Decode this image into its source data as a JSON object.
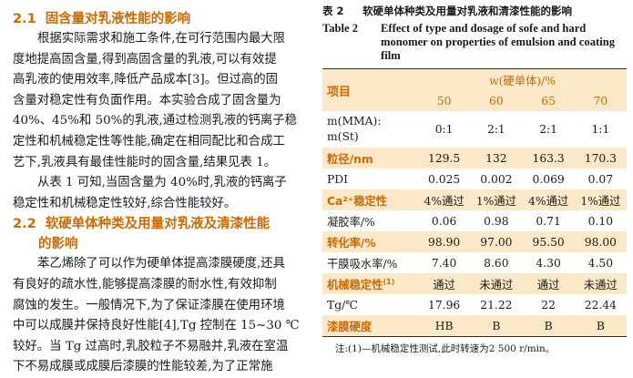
{
  "left": {
    "s21": {
      "num": "2.1",
      "title": "固含量对乳液性能的影响"
    },
    "p1": [
      "根据实际需求和施工条件,在可行范围内最大限",
      "度地提高固含量,得到高固含量的乳液,可以有效提",
      "高乳液的使用效率,降低产品成本[3]。但过高的固",
      "含量对稳定性有负面作用。本实验合成了固含量为",
      "40%、45%和 50%的乳液,通过检测乳液的钙离子稳",
      "定性和机械稳定性等性能,确定在相同配比和合成工",
      "艺下,乳液具有最佳性能时的固含量,结果见表 1。"
    ],
    "p2": [
      "从表 1 可知,当固含量为 40%时,乳液的钙离子",
      "稳定性和机械稳定性较好,综合性能较好。"
    ],
    "s22": {
      "num": "2.2",
      "title1": "软硬单体种类及用量对乳液及清漆性能",
      "title2": "的影响"
    },
    "p3": [
      "苯乙烯除了可以作为硬单体提高漆膜硬度,还具",
      "有良好的疏水性,能够提高漆膜的耐水性,有效抑制",
      "腐蚀的发生。一般情况下,为了保证漆膜在使用环境",
      "中可以成膜并保持良好性能[4],Tg 控制在 15~30 ℃",
      "较好。当 Tg 过高时,乳胶粒子不易融并,乳液在室温",
      "下不易成膜或成膜后漆膜的性能较差,为了正常施"
    ]
  },
  "table": {
    "cap_cn_label": "表 2",
    "cap_cn_text": "软硬单体种类及用量对乳液和清漆性能的影响",
    "cap_en_label": "Table 2",
    "cap_en_text": "Effect of type and dosage of sofe and hard monomer on properties of emulsion and coating film",
    "header_item": "项目",
    "header_group": "w(硬单体)/%",
    "columns": [
      "50",
      "60",
      "65",
      "70"
    ],
    "rows": [
      {
        "label": "m(MMA):",
        "label2": "m(St)",
        "values": [
          "0:1",
          "2:1",
          "2:1",
          "1:1"
        ]
      },
      {
        "label": "粒径/nm",
        "values": [
          "129.5",
          "132",
          "163.3",
          "170.3"
        ]
      },
      {
        "label": "PDI",
        "values": [
          "0.025",
          "0.002",
          "0.069",
          "0.07"
        ]
      },
      {
        "label": "Ca²⁺稳定性",
        "values": [
          "4%通过",
          "1%通过",
          "4%通过",
          "1%通过"
        ]
      },
      {
        "label": "凝胶率/%",
        "values": [
          "0.06",
          "0.98",
          "0.71",
          "0.10"
        ]
      },
      {
        "label": "转化率/%",
        "values": [
          "98.90",
          "97.00",
          "95.50",
          "98.00"
        ]
      },
      {
        "label": "干膜吸水率/%",
        "values": [
          "7.40",
          "8.60",
          "4.30",
          "4.50"
        ]
      },
      {
        "label": "机械稳定性",
        "sup": "(1)",
        "values": [
          "通过",
          "未通过",
          "通过",
          "未通过"
        ]
      },
      {
        "label": "Tg/℃",
        "values": [
          "17.96",
          "21.22",
          "22",
          "22.44"
        ]
      },
      {
        "label": "漆膜硬度",
        "values": [
          "HB",
          "B",
          "B",
          "B"
        ]
      }
    ],
    "note": "注:(1)—机械稳定性测试,此时转速为2 500 r/min。"
  }
}
